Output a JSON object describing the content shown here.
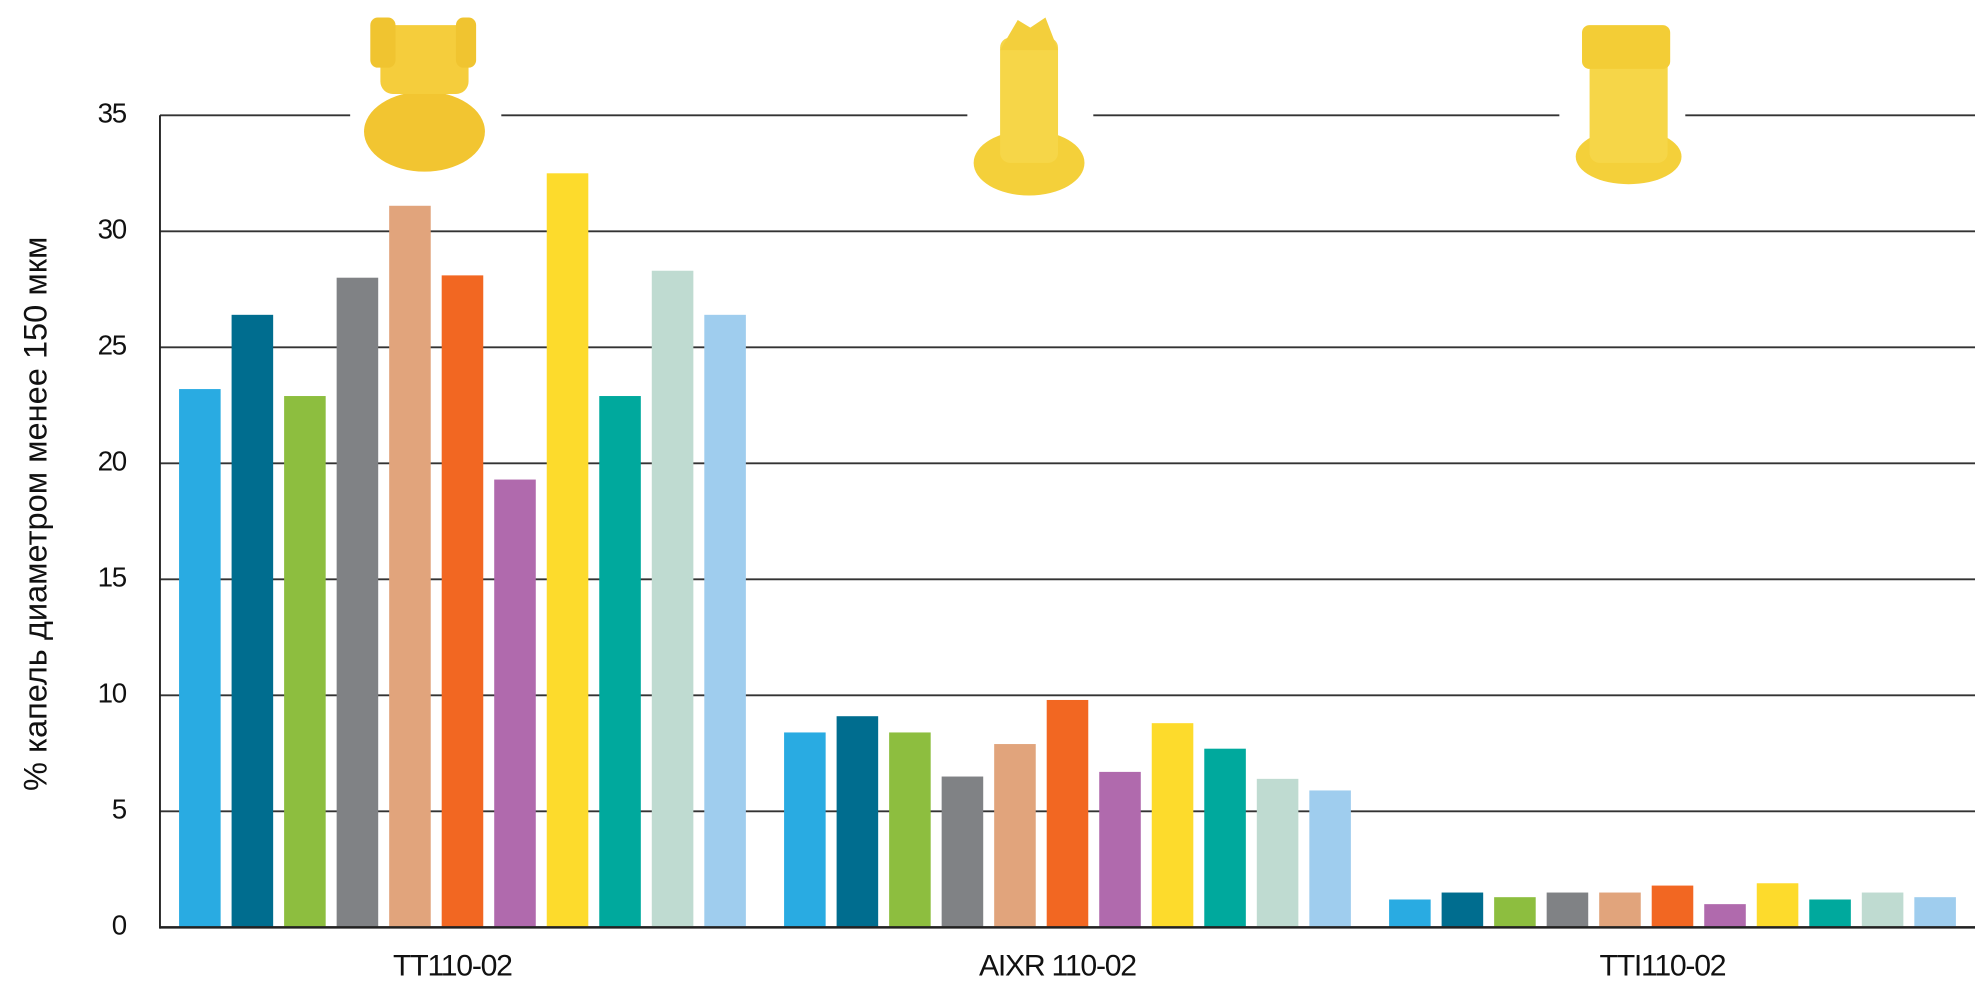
{
  "chart_data": {
    "type": "bar",
    "y_label": "% капель диаметром менее  150 мкм",
    "categories": [
      "TT110-02",
      "AIXR 110-02",
      "TTI110-02"
    ],
    "series": [
      {
        "color": "#29abe2",
        "values": [
          23.2,
          8.4,
          1.2
        ]
      },
      {
        "color": "#006d8f",
        "values": [
          26.4,
          9.1,
          1.5
        ]
      },
      {
        "color": "#8dbe3f",
        "values": [
          22.9,
          8.4,
          1.3
        ]
      },
      {
        "color": "#808285",
        "values": [
          28.0,
          6.5,
          1.5
        ]
      },
      {
        "color": "#e1a47c",
        "values": [
          31.1,
          7.9,
          1.5
        ]
      },
      {
        "color": "#f26722",
        "values": [
          28.1,
          9.8,
          1.8
        ]
      },
      {
        "color": "#b06aad",
        "values": [
          19.3,
          6.7,
          1.0
        ]
      },
      {
        "color": "#fddb2c",
        "values": [
          32.5,
          8.8,
          1.9
        ]
      },
      {
        "color": "#00a99d",
        "values": [
          22.9,
          7.7,
          1.2
        ]
      },
      {
        "color": "#bfdbd1",
        "values": [
          28.3,
          6.4,
          1.5
        ]
      },
      {
        "color": "#9fcdee",
        "values": [
          26.4,
          5.9,
          1.3
        ]
      }
    ],
    "ylim": [
      0,
      35
    ],
    "yticks": [
      0,
      5,
      10,
      15,
      20,
      25,
      30,
      35
    ],
    "grid": true
  }
}
